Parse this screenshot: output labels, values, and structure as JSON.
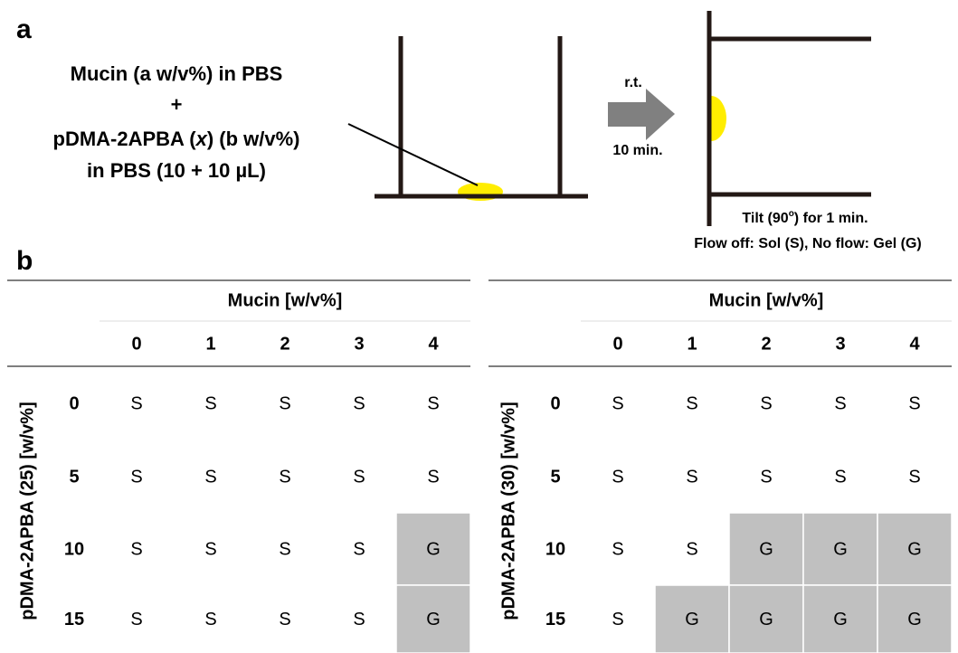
{
  "panel_a": {
    "label": "a",
    "mixture": [
      [
        "Mucin (a w/v%) in PBS"
      ],
      [
        "+"
      ],
      [
        "pDMA-2APBA (",
        "x",
        ") (b w/v%)"
      ],
      [
        "in PBS (10 + 10 µL)"
      ]
    ],
    "arrow_top": "r.t.",
    "arrow_bottom": "10 min.",
    "tilt": [
      "Tilt (90",
      "o",
      ") for 1 min."
    ],
    "result": "Flow off: Sol (S), No flow: Gel (G)"
  },
  "panel_b": {
    "label": "b",
    "tables": [
      {
        "column_title": "Mucin [w/v%]",
        "columns": [
          "0",
          "1",
          "2",
          "3",
          "4"
        ],
        "row_title": "pDMA-2APBA (25) [w/v%]",
        "rows": [
          {
            "label": "0",
            "cells": [
              "S",
              "S",
              "S",
              "S",
              "S"
            ]
          },
          {
            "label": "5",
            "cells": [
              "S",
              "S",
              "S",
              "S",
              "S"
            ]
          },
          {
            "label": "10",
            "cells": [
              "S",
              "S",
              "S",
              "S",
              "G"
            ]
          },
          {
            "label": "15",
            "cells": [
              "S",
              "S",
              "S",
              "S",
              "G"
            ]
          }
        ]
      },
      {
        "column_title": "Mucin [w/v%]",
        "columns": [
          "0",
          "1",
          "2",
          "3",
          "4"
        ],
        "row_title": "pDMA-2APBA (30) [w/v%]",
        "rows": [
          {
            "label": "0",
            "cells": [
              "S",
              "S",
              "S",
              "S",
              "S"
            ]
          },
          {
            "label": "5",
            "cells": [
              "S",
              "S",
              "S",
              "S",
              "S"
            ]
          },
          {
            "label": "10",
            "cells": [
              "S",
              "S",
              "G",
              "G",
              "G"
            ]
          },
          {
            "label": "15",
            "cells": [
              "S",
              "G",
              "G",
              "G",
              "G"
            ]
          }
        ]
      }
    ]
  }
}
